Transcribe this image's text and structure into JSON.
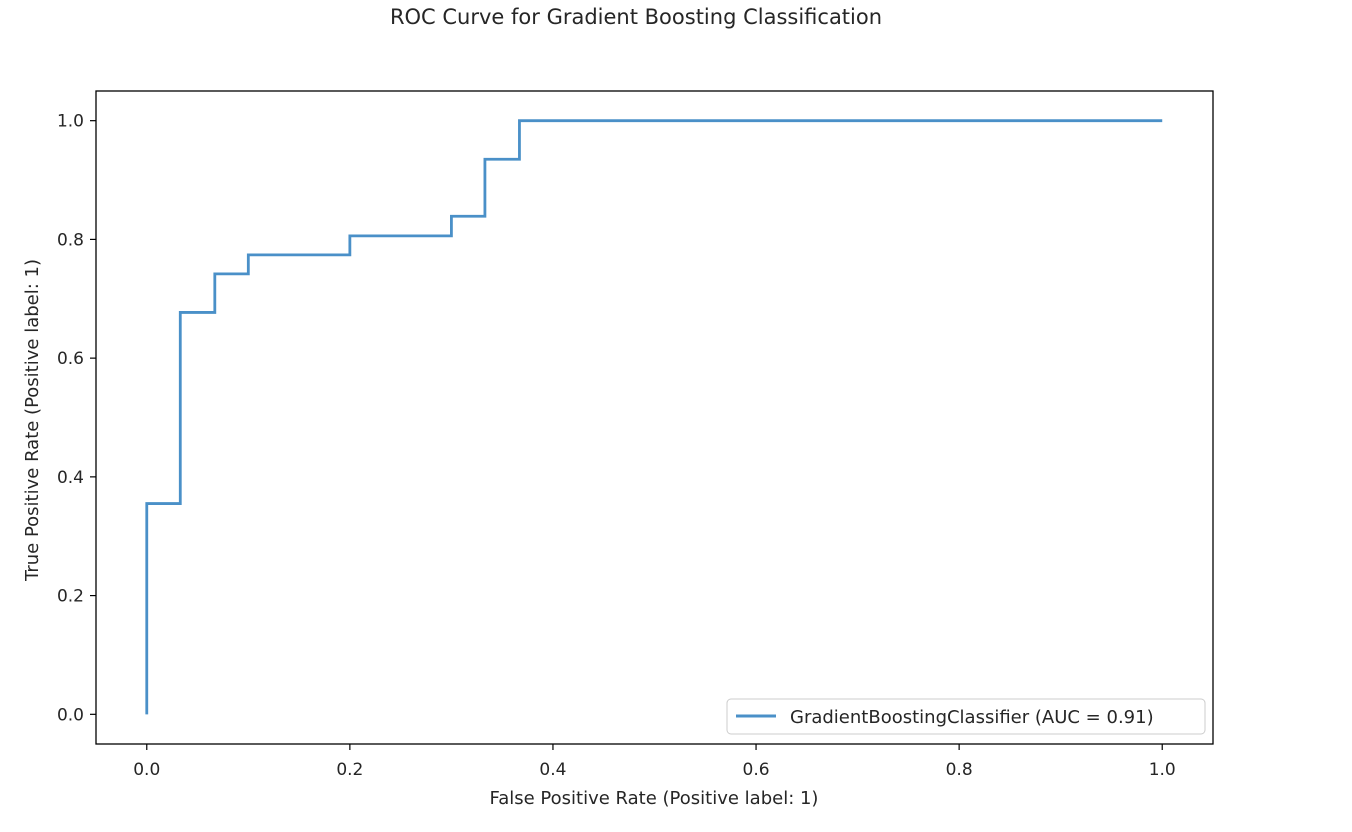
{
  "chart_data": {
    "type": "line",
    "title": "ROC Curve for Gradient Boosting Classification",
    "xlabel": "False Positive Rate (Positive label: 1)",
    "ylabel": "True Positive Rate (Positive label: 1)",
    "xlim": [
      -0.05,
      1.05
    ],
    "ylim": [
      -0.05,
      1.05
    ],
    "xticks": [
      0.0,
      0.2,
      0.4,
      0.6,
      0.8,
      1.0
    ],
    "yticks": [
      0.0,
      0.2,
      0.4,
      0.6,
      0.8,
      1.0
    ],
    "xtick_labels": [
      "0.0",
      "0.2",
      "0.4",
      "0.6",
      "0.8",
      "1.0"
    ],
    "ytick_labels": [
      "0.0",
      "0.2",
      "0.4",
      "0.6",
      "0.8",
      "1.0"
    ],
    "grid": false,
    "legend_position": "bottom-right",
    "series": [
      {
        "name": "GradientBoostingClassifier (AUC = 0.91)",
        "color": "#4a90c8",
        "x": [
          0.0,
          0.0,
          0.033,
          0.033,
          0.067,
          0.067,
          0.1,
          0.1,
          0.2,
          0.2,
          0.3,
          0.3,
          0.333,
          0.333,
          0.367,
          0.367,
          1.0
        ],
        "y": [
          0.0,
          0.355,
          0.355,
          0.677,
          0.677,
          0.742,
          0.742,
          0.774,
          0.774,
          0.806,
          0.806,
          0.839,
          0.839,
          0.935,
          0.935,
          1.0,
          1.0
        ]
      }
    ]
  }
}
